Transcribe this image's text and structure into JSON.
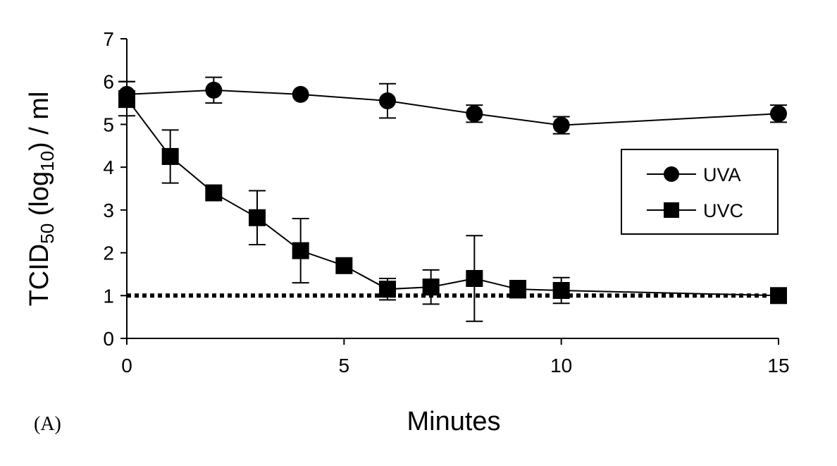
{
  "chart_data": {
    "type": "line",
    "panel_label": "(A)",
    "xlabel": "Minutes",
    "ylabel": {
      "main": "TCID",
      "sub": "50",
      "mid": " (log",
      "sub2": "10",
      "end": ") / ml"
    },
    "xlim": [
      0,
      15
    ],
    "ylim": [
      0,
      7
    ],
    "xticks": [
      0,
      5,
      10,
      15
    ],
    "yticks": [
      0,
      1,
      2,
      3,
      4,
      5,
      6,
      7
    ],
    "legend_position": "right",
    "grid": false,
    "series": [
      {
        "name": "UVA",
        "marker": "circle",
        "color": "#000000",
        "points": [
          {
            "x": 0,
            "y": 5.7,
            "err": 0.3
          },
          {
            "x": 2,
            "y": 5.8,
            "err": 0.3
          },
          {
            "x": 4,
            "y": 5.7,
            "err": 0
          },
          {
            "x": 6,
            "y": 5.55,
            "err": 0.4
          },
          {
            "x": 8,
            "y": 5.25,
            "err": 0.2
          },
          {
            "x": 10,
            "y": 4.98,
            "err": 0.2
          },
          {
            "x": 15,
            "y": 5.25,
            "err": 0.2
          }
        ]
      },
      {
        "name": "UVC",
        "marker": "square",
        "color": "#000000",
        "points": [
          {
            "x": 0,
            "y": 5.6,
            "err": 0.4
          },
          {
            "x": 1,
            "y": 4.25,
            "err": 0.62
          },
          {
            "x": 2,
            "y": 3.4,
            "err": 0
          },
          {
            "x": 3,
            "y": 2.82,
            "err": 0.63
          },
          {
            "x": 4,
            "y": 2.05,
            "err": 0.75
          },
          {
            "x": 5,
            "y": 1.7,
            "err": 0
          },
          {
            "x": 6,
            "y": 1.15,
            "err": 0.25
          },
          {
            "x": 7,
            "y": 1.2,
            "err": 0.4
          },
          {
            "x": 8,
            "y": 1.4,
            "err": 1.0
          },
          {
            "x": 9,
            "y": 1.15,
            "err": 0.2
          },
          {
            "x": 10,
            "y": 1.12,
            "err": 0.3
          },
          {
            "x": 15,
            "y": 1.0,
            "err": 0
          }
        ]
      }
    ],
    "reference_line": {
      "y": 1,
      "style": "dotted"
    }
  }
}
